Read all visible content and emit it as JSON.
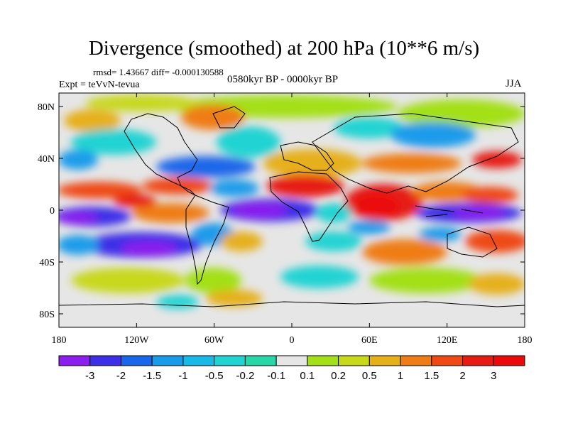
{
  "title": "Divergence (smoothed) at 200 hPa (10**6 m/s)",
  "stats": "rmsd= 1.43667 diff= -0.000130588",
  "experiment": "Expt = teVvN-tevua",
  "period": "0580kyr BP - 0000kyr BP",
  "season": "JJA",
  "lat_ticks": [
    "80N",
    "40N",
    "0",
    "40S",
    "80S"
  ],
  "lon_ticks": [
    "180",
    "120W",
    "60W",
    "0",
    "60E",
    "120E",
    "180"
  ],
  "colorbar": {
    "labels": [
      "-3",
      "-2",
      "-1.5",
      "-1",
      "-0.5",
      "-0.2",
      "-0.1",
      "0.1",
      "0.2",
      "0.5",
      "1",
      "1.5",
      "2",
      "3"
    ],
    "colors": [
      "#8c1eee",
      "#3d2fe8",
      "#1a66ea",
      "#1a9bea",
      "#18b9e6",
      "#22d3d3",
      "#2ad6a8",
      "#e6e6e6",
      "#a3e019",
      "#c8d81a",
      "#e6b01a",
      "#ef7d17",
      "#ef4a15",
      "#e61c12",
      "#eb0a0a"
    ]
  }
}
